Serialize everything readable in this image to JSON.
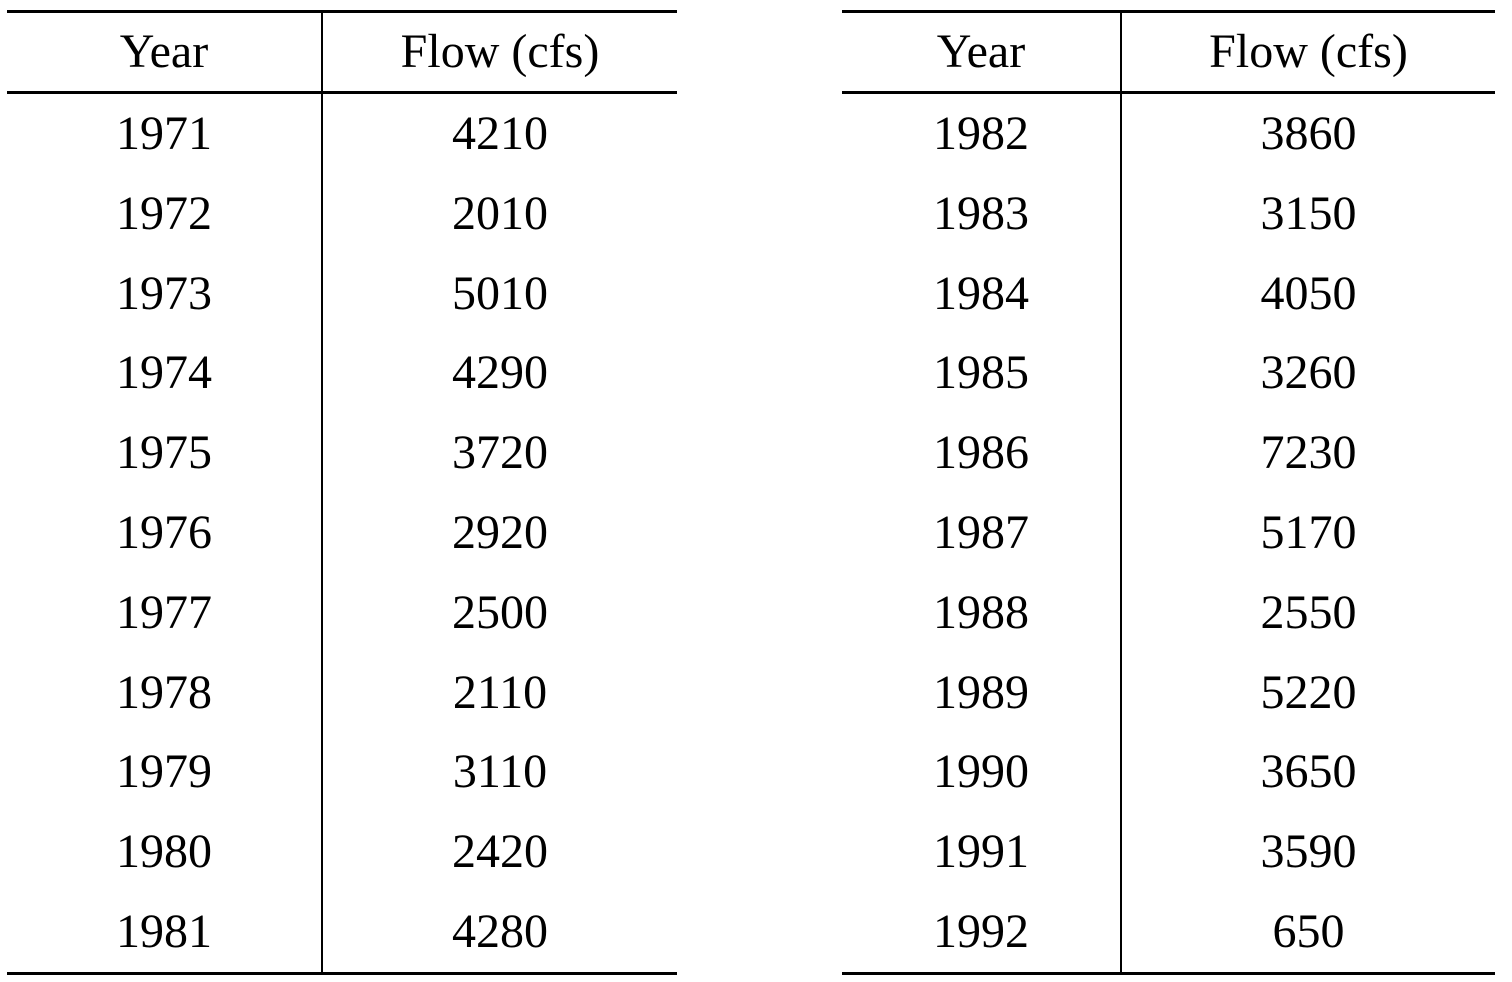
{
  "document": {
    "type": "data-tables",
    "background": "#ffffff"
  },
  "colors": {
    "text": "#000000",
    "rule": "#000000",
    "background": "#ffffff"
  },
  "tables": [
    {
      "id": "1971-1981",
      "columns": [
        "Year",
        "Flow (cfs)"
      ],
      "rows": [
        {
          "year": "1971",
          "flow": "4210"
        },
        {
          "year": "1972",
          "flow": "2010"
        },
        {
          "year": "1973",
          "flow": "5010"
        },
        {
          "year": "1974",
          "flow": "4290"
        },
        {
          "year": "1975",
          "flow": "3720"
        },
        {
          "year": "1976",
          "flow": "2920"
        },
        {
          "year": "1977",
          "flow": "2500"
        },
        {
          "year": "1978",
          "flow": "2110"
        },
        {
          "year": "1979",
          "flow": "3110"
        },
        {
          "year": "1980",
          "flow": "2420"
        },
        {
          "year": "1981",
          "flow": "4280"
        }
      ]
    },
    {
      "id": "1982-1992",
      "columns": [
        "Year",
        "Flow (cfs)"
      ],
      "rows": [
        {
          "year": "1982",
          "flow": "3860"
        },
        {
          "year": "1983",
          "flow": "3150"
        },
        {
          "year": "1984",
          "flow": "4050"
        },
        {
          "year": "1985",
          "flow": "3260"
        },
        {
          "year": "1986",
          "flow": "7230"
        },
        {
          "year": "1987",
          "flow": "5170"
        },
        {
          "year": "1988",
          "flow": "2550"
        },
        {
          "year": "1989",
          "flow": "5220"
        },
        {
          "year": "1990",
          "flow": "3650"
        },
        {
          "year": "1991",
          "flow": "3590"
        },
        {
          "year": "1992",
          "flow": "650"
        }
      ]
    }
  ]
}
